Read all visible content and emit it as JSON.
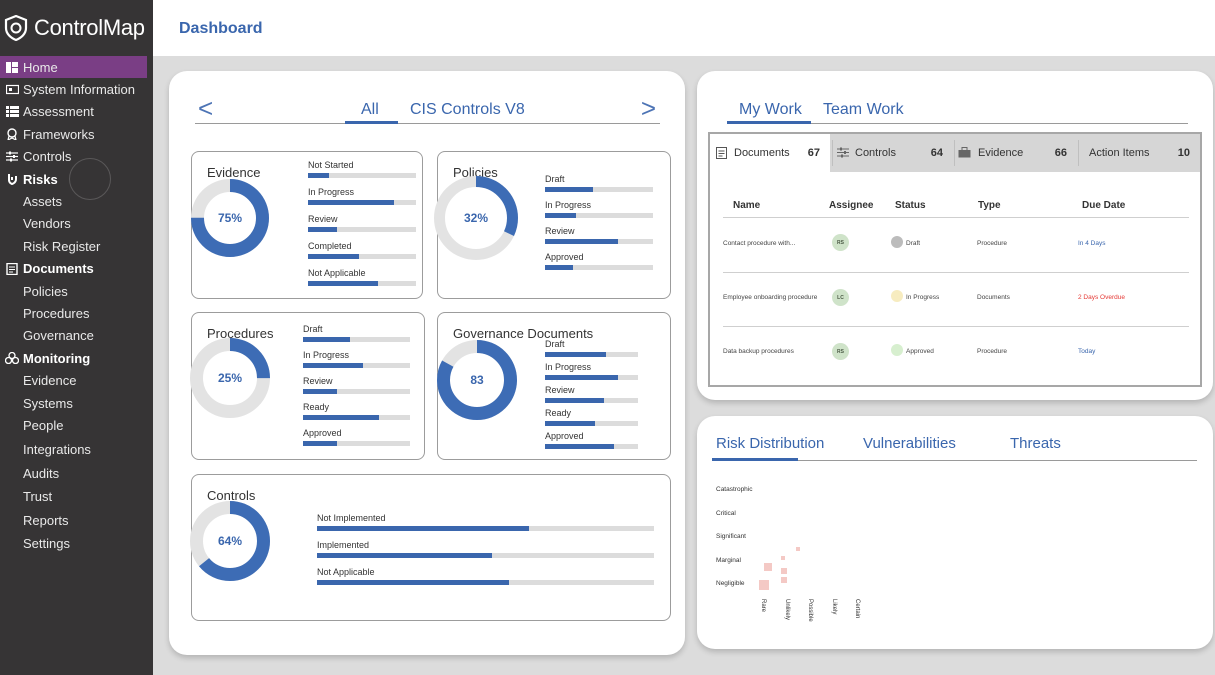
{
  "app": {
    "name": "ControlMap",
    "page_title": "Dashboard"
  },
  "sidebar": {
    "items": [
      {
        "label": "Home",
        "icon": "home-icon"
      },
      {
        "label": "System Information",
        "icon": "system-info-icon"
      },
      {
        "label": "Assessment",
        "icon": "assessment-icon"
      },
      {
        "label": "Frameworks",
        "icon": "frameworks-icon"
      },
      {
        "label": "Controls",
        "icon": "controls-icon"
      },
      {
        "label": "Risks",
        "icon": "risks-icon"
      },
      {
        "label": "Assets"
      },
      {
        "label": "Vendors"
      },
      {
        "label": "Risk Register"
      },
      {
        "label": "Documents",
        "icon": "documents-icon"
      },
      {
        "label": "Policies"
      },
      {
        "label": "Procedures"
      },
      {
        "label": "Governance"
      },
      {
        "label": "Monitoring",
        "icon": "monitoring-icon"
      },
      {
        "label": "Evidence"
      },
      {
        "label": "Systems"
      },
      {
        "label": "People"
      },
      {
        "label": "Integrations"
      },
      {
        "label": "Audits"
      },
      {
        "label": "Trust"
      },
      {
        "label": "Reports"
      },
      {
        "label": "Settings"
      }
    ]
  },
  "framework_tabs": {
    "all": "All",
    "cis": "CIS Controls V8",
    "prev": "<",
    "next": ">"
  },
  "cards": {
    "evidence": {
      "title": "Evidence",
      "value": "75%",
      "percent": 75,
      "bars": [
        {
          "label": "Not Started",
          "fill": 0.19
        },
        {
          "label": "In Progress",
          "fill": 0.8
        },
        {
          "label": "Review",
          "fill": 0.27
        },
        {
          "label": "Completed",
          "fill": 0.47
        },
        {
          "label": "Not Applicable",
          "fill": 0.65
        }
      ]
    },
    "policies": {
      "title": "Policies",
      "value": "32%",
      "percent": 32,
      "bars": [
        {
          "label": "Draft",
          "fill": 0.44
        },
        {
          "label": "In Progress",
          "fill": 0.29
        },
        {
          "label": "Review",
          "fill": 0.68
        },
        {
          "label": "Approved",
          "fill": 0.26
        }
      ]
    },
    "procedures": {
      "title": "Procedures",
      "value": "25%",
      "percent": 25,
      "bars": [
        {
          "label": "Draft",
          "fill": 0.44
        },
        {
          "label": "In Progress",
          "fill": 0.56
        },
        {
          "label": "Review",
          "fill": 0.32
        },
        {
          "label": "Ready",
          "fill": 0.71
        },
        {
          "label": "Approved",
          "fill": 0.32
        }
      ]
    },
    "governance": {
      "title": "Governance Documents",
      "value": "83",
      "percent": 83,
      "bars": [
        {
          "label": "Draft",
          "fill": 0.66
        },
        {
          "label": "In Progress",
          "fill": 0.78
        },
        {
          "label": "Review",
          "fill": 0.63
        },
        {
          "label": "Ready",
          "fill": 0.54
        },
        {
          "label": "Approved",
          "fill": 0.74
        }
      ]
    },
    "controls": {
      "title": "Controls",
      "value": "64%",
      "percent": 64,
      "bars": [
        {
          "label": "Not Implemented",
          "fill": 0.63
        },
        {
          "label": "Implemented",
          "fill": 0.52
        },
        {
          "label": "Not Applicable",
          "fill": 0.57
        }
      ]
    }
  },
  "mywork": {
    "tabs": {
      "my_work": "My Work",
      "team_work": "Team Work"
    },
    "counts": [
      {
        "label": "Documents",
        "count": "67",
        "icon": "document-icon"
      },
      {
        "label": "Controls",
        "count": "64",
        "icon": "controls-icon"
      },
      {
        "label": "Evidence",
        "count": "66",
        "icon": "briefcase-icon"
      },
      {
        "label": "Action Items",
        "count": "10"
      }
    ],
    "columns": [
      "Name",
      "Assignee",
      "Status",
      "Type",
      "Due Date"
    ],
    "rows": [
      {
        "name": "Contact procedure with...",
        "assignee": "RS",
        "status": "Draft",
        "status_color": "#bcbcbc",
        "type": "Procedure",
        "due": "In 4 Days",
        "due_color": "#3a66ad"
      },
      {
        "name": "Employee onboarding procedure",
        "assignee": "LC",
        "status": "In Progress",
        "status_color": "#f7ecc0",
        "type": "Documents",
        "due": "2 Days Overdue",
        "due_color": "#e53935"
      },
      {
        "name": "Data backup procedures",
        "assignee": "RS",
        "status": "Approved",
        "status_color": "#d7efcf",
        "type": "Procedure",
        "due": "Today",
        "due_color": "#3a66ad"
      }
    ]
  },
  "risk": {
    "tabs": {
      "distribution": "Risk Distribution",
      "vulnerabilities": "Vulnerabilities",
      "threats": "Threats"
    },
    "impact_levels": [
      "Catastrophic",
      "Critical",
      "Significant",
      "Marginal",
      "Negligible"
    ],
    "likelihood_levels": [
      "Rare",
      "Unlikely",
      "Possible",
      "Likely",
      "Certain"
    ]
  }
}
